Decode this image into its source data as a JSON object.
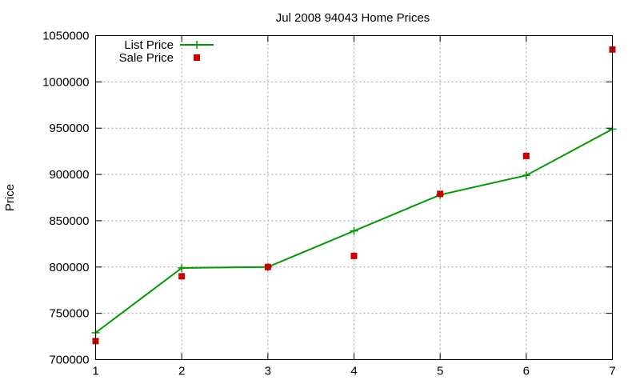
{
  "chart_data": {
    "type": "line",
    "title": "Jul 2008 94043 Home Prices",
    "xlabel": "",
    "ylabel": "Price",
    "xlim": [
      1,
      7
    ],
    "ylim": [
      700000,
      1050000
    ],
    "xticks": [
      1,
      2,
      3,
      4,
      5,
      6,
      7
    ],
    "yticks": [
      700000,
      750000,
      800000,
      850000,
      900000,
      950000,
      1000000,
      1050000
    ],
    "grid": true,
    "legend_position": "top-left",
    "series": [
      {
        "name": "List Price",
        "style": "line-plus",
        "color": "#009900",
        "x": [
          1,
          2,
          3,
          4,
          5,
          6,
          7
        ],
        "values": [
          729000,
          799000,
          800000,
          839000,
          878000,
          899000,
          949000
        ]
      },
      {
        "name": "Sale Price",
        "style": "square-points",
        "color": "#cc0000",
        "x": [
          1,
          2,
          3,
          4,
          5,
          6,
          7
        ],
        "values": [
          720000,
          790000,
          800000,
          812000,
          879000,
          920000,
          1035000
        ]
      }
    ]
  }
}
